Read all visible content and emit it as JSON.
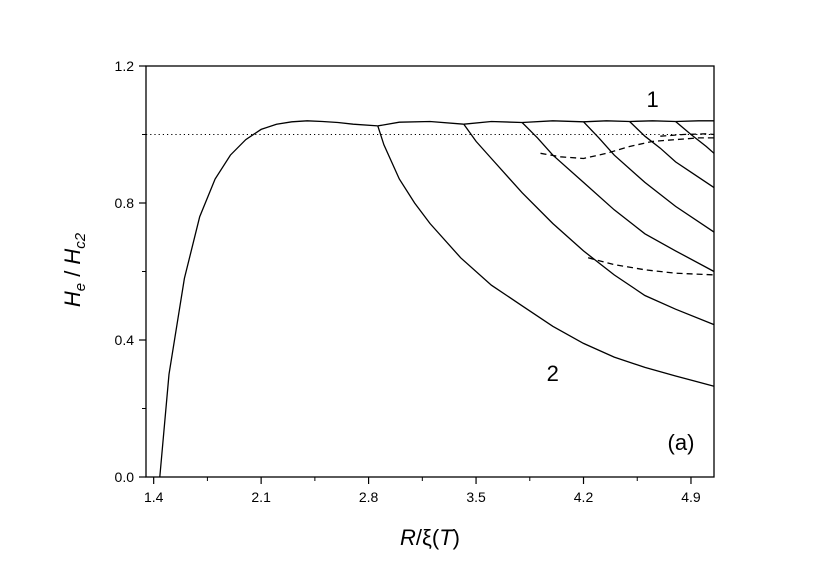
{
  "chart_data": {
    "type": "line",
    "title": "",
    "xlabel": {
      "var": "R",
      "mid": "/ξ(",
      "arg": "T",
      "end": ")"
    },
    "ylabel": {
      "h1": "H",
      "s1": "e",
      "sep": " / ",
      "h2": "H",
      "s2": "c2"
    },
    "xlim": [
      1.35,
      5.05
    ],
    "ylim": [
      0.0,
      1.2
    ],
    "xticks": [
      1.4,
      2.1,
      2.8,
      3.5,
      4.2,
      4.9
    ],
    "xtick_labels": [
      "1.4",
      "2.1",
      "2.8",
      "3.5",
      "4.2",
      "4.9"
    ],
    "yticks": [
      0.0,
      0.4,
      0.8,
      1.2
    ],
    "ytick_labels": [
      "0.0",
      "0.4",
      "0.8",
      "1.2"
    ],
    "x_minor_step": 0.35,
    "y_minor_step": 0.2,
    "grid": false,
    "annotations": [
      {
        "text": "1",
        "x": 4.65,
        "y": 1.08
      },
      {
        "text": "2",
        "x": 4.0,
        "y": 0.28
      }
    ],
    "panel_label": "(a)",
    "series": [
      {
        "style": "dotted",
        "x": [
          1.35,
          5.05
        ],
        "y": [
          1.0,
          1.0
        ]
      },
      {
        "style": "solid",
        "x": [
          1.44,
          1.5,
          1.6,
          1.7,
          1.8,
          1.9,
          2.0,
          2.1,
          2.2,
          2.3,
          2.4,
          2.5,
          2.6,
          2.7,
          2.86
        ],
        "y": [
          0.0,
          0.3,
          0.58,
          0.76,
          0.87,
          0.94,
          0.985,
          1.015,
          1.03,
          1.037,
          1.04,
          1.038,
          1.035,
          1.03,
          1.025
        ]
      },
      {
        "style": "solid",
        "x": [
          2.86,
          3.0,
          3.2,
          3.42
        ],
        "y": [
          1.025,
          1.036,
          1.038,
          1.03
        ]
      },
      {
        "style": "solid",
        "x": [
          3.42,
          3.6,
          3.8
        ],
        "y": [
          1.03,
          1.038,
          1.035
        ]
      },
      {
        "style": "solid",
        "x": [
          3.8,
          4.0,
          4.2
        ],
        "y": [
          1.035,
          1.04,
          1.037
        ]
      },
      {
        "style": "solid",
        "x": [
          4.2,
          4.35,
          4.5
        ],
        "y": [
          1.037,
          1.04,
          1.038
        ]
      },
      {
        "style": "solid",
        "x": [
          4.5,
          4.65,
          4.8
        ],
        "y": [
          1.038,
          1.04,
          1.038
        ]
      },
      {
        "style": "solid",
        "x": [
          4.8,
          4.95,
          5.05
        ],
        "y": [
          1.038,
          1.04,
          1.04
        ]
      },
      {
        "style": "solid",
        "x": [
          2.86,
          2.9,
          3.0,
          3.1,
          3.2,
          3.4,
          3.6,
          3.8,
          4.0,
          4.2,
          4.4,
          4.6,
          4.8,
          5.05
        ],
        "y": [
          1.025,
          0.97,
          0.87,
          0.8,
          0.74,
          0.64,
          0.56,
          0.5,
          0.44,
          0.39,
          0.35,
          0.32,
          0.295,
          0.265
        ]
      },
      {
        "style": "solid",
        "x": [
          3.42,
          3.5,
          3.6,
          3.8,
          4.0,
          4.2,
          4.4,
          4.6,
          4.8,
          5.05
        ],
        "y": [
          1.03,
          0.98,
          0.93,
          0.83,
          0.74,
          0.66,
          0.59,
          0.53,
          0.49,
          0.445
        ]
      },
      {
        "style": "solid",
        "x": [
          3.8,
          3.9,
          4.0,
          4.2,
          4.4,
          4.6,
          4.8,
          5.05
        ],
        "y": [
          1.035,
          0.99,
          0.94,
          0.86,
          0.78,
          0.71,
          0.66,
          0.6
        ]
      },
      {
        "style": "solid",
        "x": [
          4.2,
          4.3,
          4.4,
          4.6,
          4.8,
          5.05
        ],
        "y": [
          1.037,
          0.99,
          0.94,
          0.86,
          0.79,
          0.715
        ]
      },
      {
        "style": "solid",
        "x": [
          4.5,
          4.6,
          4.7,
          4.8,
          4.9,
          5.05
        ],
        "y": [
          1.038,
          0.995,
          0.96,
          0.92,
          0.89,
          0.845
        ]
      },
      {
        "style": "solid",
        "x": [
          4.8,
          4.9,
          5.0,
          5.05
        ],
        "y": [
          1.038,
          1.0,
          0.965,
          0.945
        ]
      },
      {
        "style": "dashed",
        "x": [
          3.92,
          4.05,
          4.2,
          4.35,
          4.5,
          4.65,
          4.8,
          4.95,
          5.05
        ],
        "y": [
          0.945,
          0.935,
          0.93,
          0.945,
          0.965,
          0.98,
          0.985,
          0.99,
          0.99
        ]
      },
      {
        "style": "dashed",
        "x": [
          4.7,
          4.85,
          5.0,
          5.05
        ],
        "y": [
          0.995,
          1.0,
          1.002,
          1.0
        ]
      },
      {
        "style": "dashed",
        "x": [
          4.23,
          4.4,
          4.6,
          4.8,
          5.05
        ],
        "y": [
          0.64,
          0.62,
          0.605,
          0.595,
          0.59
        ]
      }
    ]
  }
}
